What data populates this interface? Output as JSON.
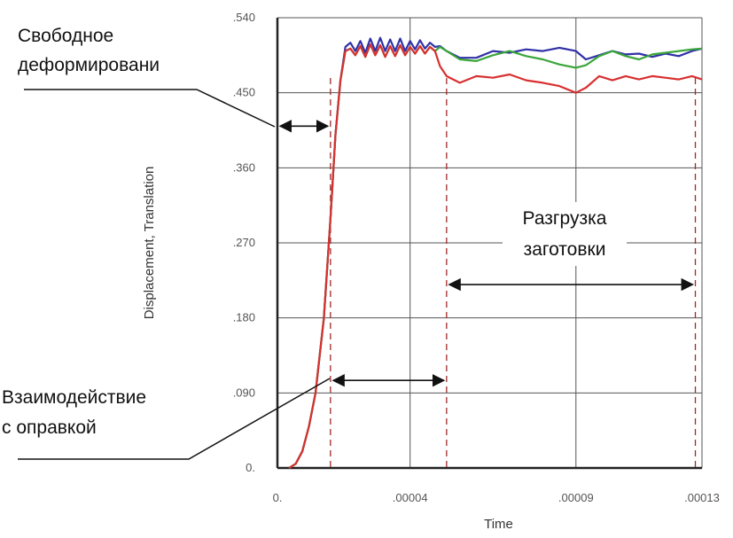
{
  "chart_data": {
    "type": "line",
    "title": "",
    "xlabel": "Time",
    "ylabel": "Displacement, Translation",
    "xlim": [
      0,
      0.000128
    ],
    "ylim": [
      0,
      0.54
    ],
    "x_ticks": [
      0,
      4e-05,
      9e-05,
      0.000128
    ],
    "x_tick_labels": [
      "0.",
      ".00004",
      ".00009",
      ".00013"
    ],
    "y_ticks": [
      0,
      0.09,
      0.18,
      0.27,
      0.36,
      0.45,
      0.54
    ],
    "y_tick_labels": [
      "0.",
      ".090",
      ".180",
      ".270",
      ".360",
      ".450",
      ".540"
    ],
    "grid": true,
    "series": [
      {
        "color": "#3030a8",
        "x": [
          3.5e-06,
          5.5e-06,
          7.5e-06,
          9.5e-06,
          1.15e-05,
          1.4e-05,
          1.6e-05,
          1.75e-05,
          1.9e-05,
          2.05e-05,
          2.2e-05,
          2.35e-05,
          2.5e-05,
          2.65e-05,
          2.8e-05,
          2.95e-05,
          3.1e-05,
          3.25e-05,
          3.4e-05,
          3.55e-05,
          3.7e-05,
          3.85e-05,
          4e-05,
          4.15e-05,
          4.3e-05,
          4.45e-05,
          4.6e-05,
          4.75e-05,
          4.9e-05,
          5.1e-05,
          5.5e-05,
          6e-05,
          6.5e-05,
          7e-05,
          7.5e-05,
          8e-05,
          8.5e-05,
          9e-05,
          9.3e-05,
          9.7e-05,
          0.000101,
          0.000105,
          0.000109,
          0.000113,
          0.000117,
          0.000121,
          0.000125,
          0.000128
        ],
        "y": [
          0,
          0.005,
          0.02,
          0.05,
          0.09,
          0.18,
          0.3,
          0.4,
          0.465,
          0.505,
          0.51,
          0.5,
          0.512,
          0.498,
          0.515,
          0.5,
          0.516,
          0.5,
          0.514,
          0.5,
          0.515,
          0.5,
          0.512,
          0.502,
          0.513,
          0.503,
          0.51,
          0.505,
          0.506,
          0.5,
          0.492,
          0.492,
          0.5,
          0.498,
          0.502,
          0.5,
          0.504,
          0.5,
          0.49,
          0.495,
          0.5,
          0.496,
          0.497,
          0.493,
          0.497,
          0.494,
          0.5,
          0.503
        ]
      },
      {
        "color": "#3aa53a",
        "x": [
          3.5e-06,
          5.5e-06,
          7.5e-06,
          9.5e-06,
          1.15e-05,
          1.4e-05,
          1.6e-05,
          1.75e-05,
          1.9e-05,
          2.05e-05,
          2.2e-05,
          2.35e-05,
          2.5e-05,
          2.65e-05,
          2.8e-05,
          2.95e-05,
          3.1e-05,
          3.25e-05,
          3.4e-05,
          3.55e-05,
          3.7e-05,
          3.85e-05,
          4e-05,
          4.15e-05,
          4.3e-05,
          4.45e-05,
          4.6e-05,
          4.75e-05,
          4.9e-05,
          5.1e-05,
          5.5e-05,
          6e-05,
          6.5e-05,
          7e-05,
          7.5e-05,
          8e-05,
          8.5e-05,
          9e-05,
          9.3e-05,
          9.7e-05,
          0.000101,
          0.000105,
          0.000109,
          0.000113,
          0.000117,
          0.000121,
          0.000125,
          0.000128
        ],
        "y": [
          0,
          0.005,
          0.02,
          0.05,
          0.09,
          0.18,
          0.3,
          0.4,
          0.465,
          0.5,
          0.503,
          0.495,
          0.506,
          0.493,
          0.508,
          0.495,
          0.507,
          0.493,
          0.506,
          0.494,
          0.507,
          0.495,
          0.505,
          0.497,
          0.506,
          0.497,
          0.505,
          0.5,
          0.505,
          0.5,
          0.49,
          0.488,
          0.495,
          0.5,
          0.494,
          0.49,
          0.484,
          0.48,
          0.483,
          0.494,
          0.5,
          0.494,
          0.49,
          0.496,
          0.498,
          0.5,
          0.502,
          0.503
        ]
      },
      {
        "color": "#d83030",
        "x": [
          3.5e-06,
          5.5e-06,
          7.5e-06,
          9.5e-06,
          1.15e-05,
          1.4e-05,
          1.6e-05,
          1.75e-05,
          1.9e-05,
          2.05e-05,
          2.2e-05,
          2.35e-05,
          2.5e-05,
          2.65e-05,
          2.8e-05,
          2.95e-05,
          3.1e-05,
          3.25e-05,
          3.4e-05,
          3.55e-05,
          3.7e-05,
          3.85e-05,
          4e-05,
          4.15e-05,
          4.3e-05,
          4.45e-05,
          4.6e-05,
          4.75e-05,
          4.9e-05,
          5.1e-05,
          5.5e-05,
          6e-05,
          6.5e-05,
          7e-05,
          7.5e-05,
          8e-05,
          8.5e-05,
          9e-05,
          9.3e-05,
          9.7e-05,
          0.000101,
          0.000105,
          0.000109,
          0.000113,
          0.000117,
          0.000121,
          0.000125,
          0.000128
        ],
        "y": [
          0,
          0.005,
          0.02,
          0.05,
          0.09,
          0.18,
          0.3,
          0.4,
          0.465,
          0.5,
          0.503,
          0.495,
          0.506,
          0.493,
          0.508,
          0.495,
          0.507,
          0.493,
          0.506,
          0.494,
          0.507,
          0.495,
          0.505,
          0.497,
          0.506,
          0.497,
          0.505,
          0.5,
          0.482,
          0.47,
          0.462,
          0.47,
          0.468,
          0.472,
          0.465,
          0.462,
          0.458,
          0.45,
          0.456,
          0.47,
          0.465,
          0.47,
          0.466,
          0.47,
          0.468,
          0.466,
          0.47,
          0.466
        ]
      }
    ],
    "markers": [
      {
        "x": 1.6e-05,
        "style": "dashed"
      },
      {
        "x": 5.1e-05,
        "style": "dashed"
      },
      {
        "x": 0.000126,
        "style": "dashed"
      }
    ],
    "annotations": [
      {
        "lines": [
          "Свободное",
          "деформировани"
        ],
        "arrow_x": [
          0,
          1.6e-05
        ],
        "arrow_y": 0.41
      },
      {
        "lines": [
          "Взаимодействие",
          "с оправкой"
        ],
        "arrow_x": [
          1.6e-05,
          5.1e-05
        ],
        "arrow_y": 0.105
      },
      {
        "lines": [
          "Разгрузка",
          "заготовки"
        ],
        "arrow_x": [
          5.1e-05,
          0.000126
        ],
        "arrow_y": 0.22
      }
    ]
  }
}
